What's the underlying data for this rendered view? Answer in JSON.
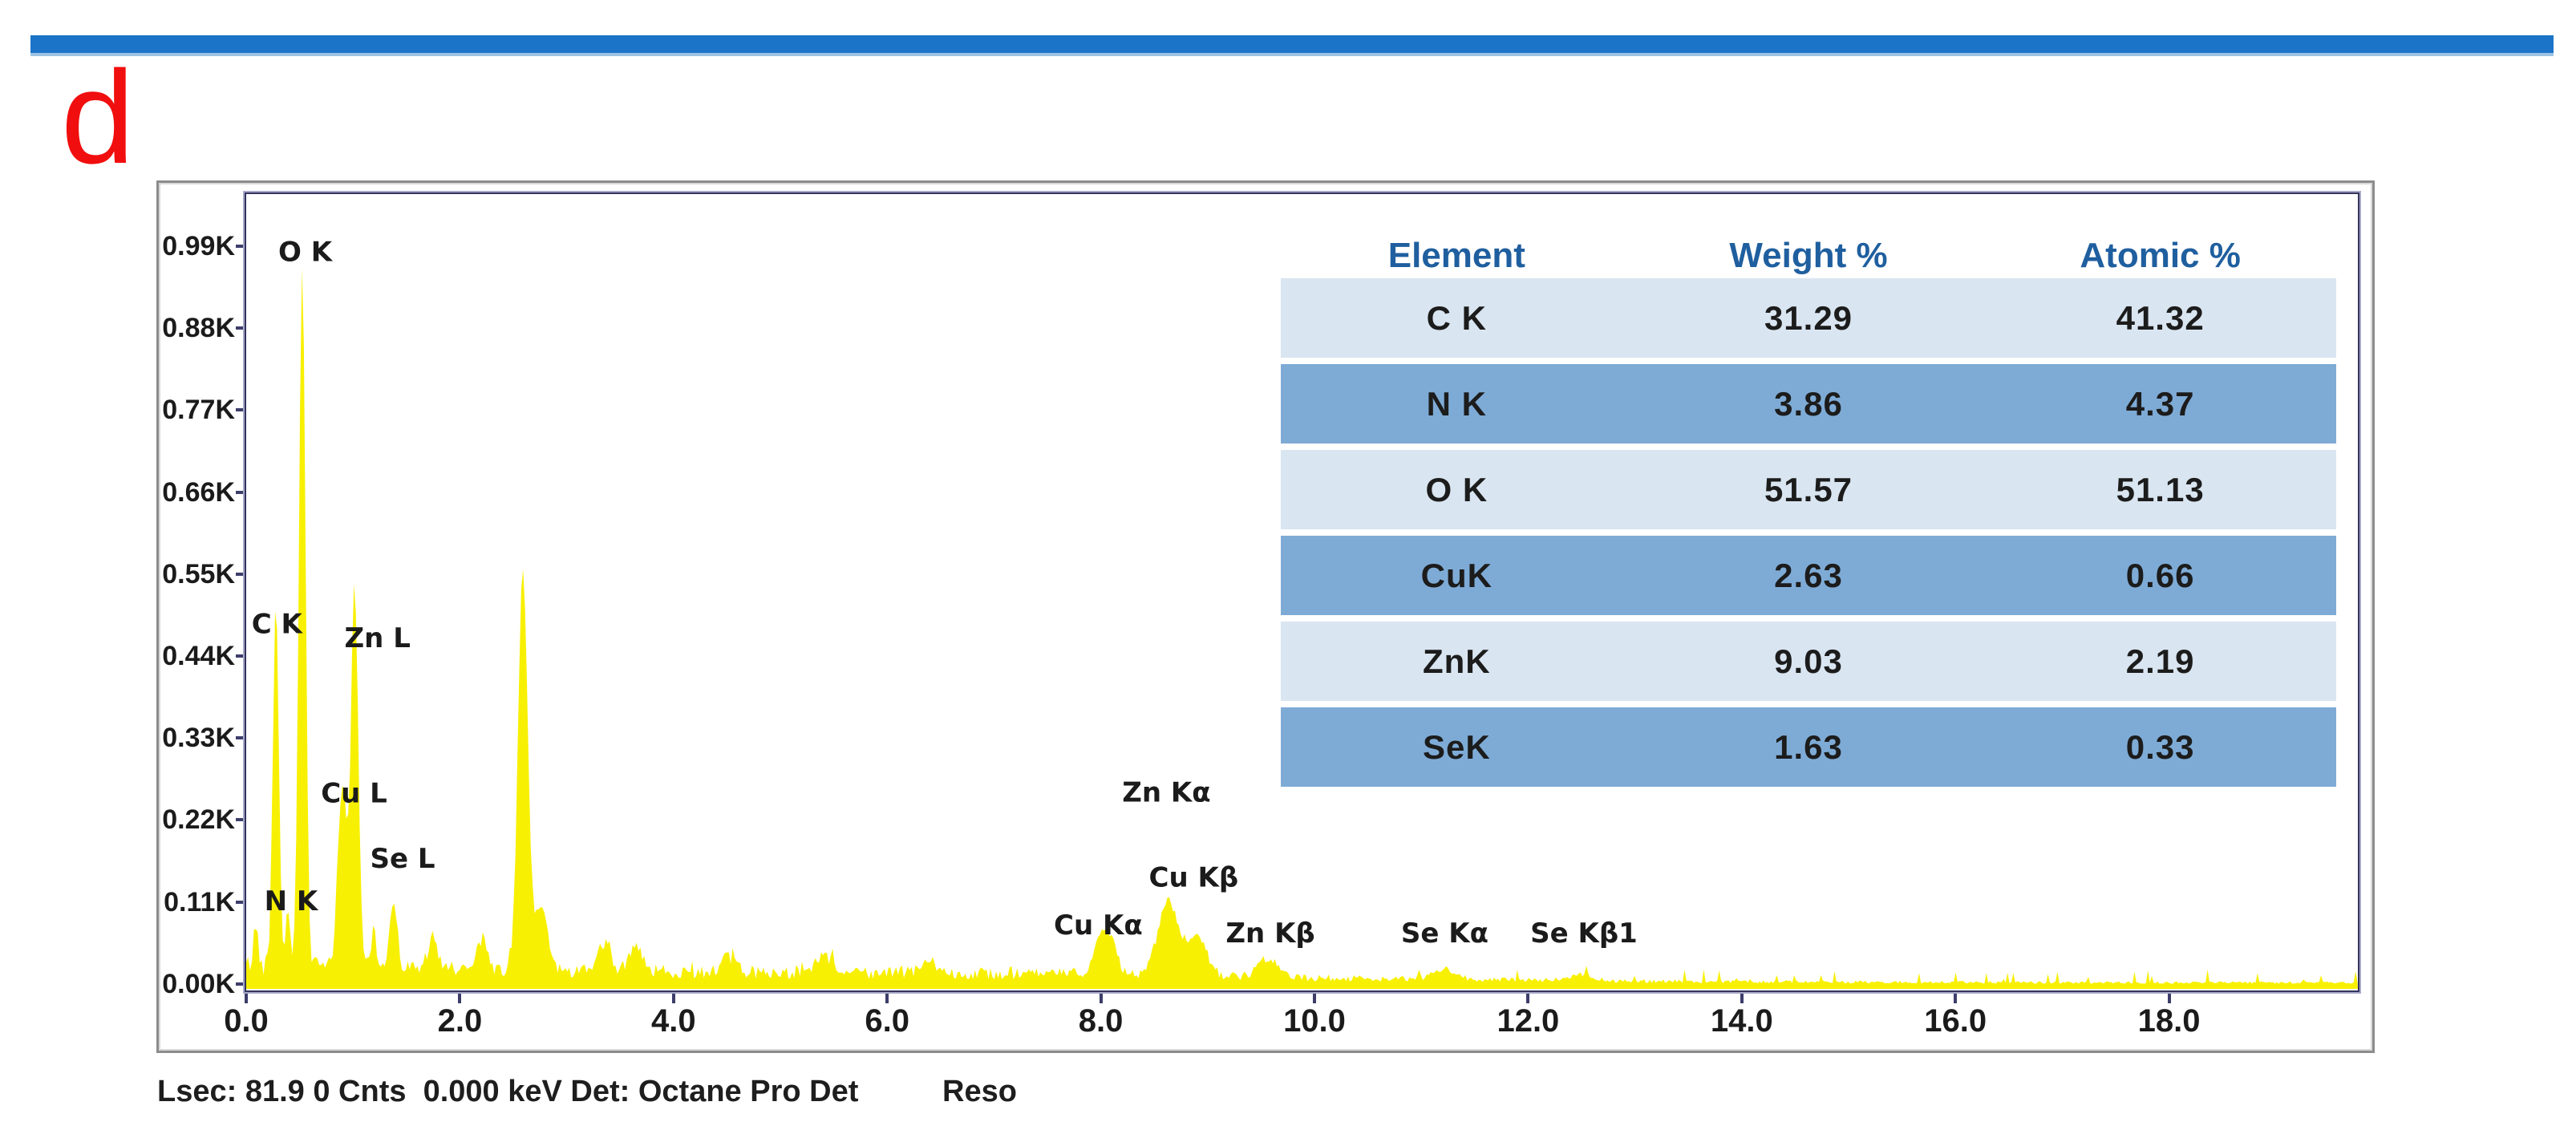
{
  "panel": {
    "label": "d"
  },
  "top_bar": {
    "color": "#1B74C8",
    "underline_color": "#9CC2E5"
  },
  "panel_label_color": "#F10E0E",
  "status_bar": {
    "text": "Lsec: 81.9 0 Cnts  0.000 keV Det: Octane Pro Det",
    "right_text": "Reso"
  },
  "table": {
    "headers": [
      "Element",
      "Weight %",
      "Atomic %"
    ],
    "header_text_color": "#1F5F9F",
    "row_color_light": "#D9E5F1",
    "row_color_dark": "#7EABD6",
    "rows": [
      {
        "element": "C K",
        "weight": "31.29",
        "atomic": "41.32",
        "shade": "light"
      },
      {
        "element": "N K",
        "weight": "3.86",
        "atomic": "4.37",
        "shade": "dark"
      },
      {
        "element": "O K",
        "weight": "51.57",
        "atomic": "51.13",
        "shade": "light"
      },
      {
        "element": "CuK",
        "weight": "2.63",
        "atomic": "0.66",
        "shade": "dark"
      },
      {
        "element": "ZnK",
        "weight": "9.03",
        "atomic": "2.19",
        "shade": "light"
      },
      {
        "element": "SeK",
        "weight": "1.63",
        "atomic": "0.33",
        "shade": "dark"
      }
    ]
  },
  "chart_data": {
    "type": "area",
    "title": "EDS spectrum",
    "series_color": "#F8F002",
    "x_range_keV": [
      0,
      19.77
    ],
    "y_range_counts": [
      0,
      1065
    ],
    "x_tick_step_keV": 2.0,
    "x_ticks": [
      "0.0",
      "2.0",
      "4.0",
      "6.0",
      "8.0",
      "10.0",
      "12.0",
      "14.0",
      "16.0",
      "18.0"
    ],
    "y_ticks": [
      "0.99K",
      "0.88K",
      "0.77K",
      "0.66K",
      "0.55K",
      "0.44K",
      "0.33K",
      "0.22K",
      "0.11K",
      "0.00K"
    ],
    "grid": "off",
    "legend": "none",
    "peaks": [
      {
        "line": "tail",
        "keV": 0.09,
        "counts": 55,
        "sigma": 0.02
      },
      {
        "line": "C K",
        "keV": 0.277,
        "counts": 480,
        "sigma": 0.028
      },
      {
        "line": "N K",
        "keV": 0.392,
        "counts": 72,
        "sigma": 0.024
      },
      {
        "line": "O K",
        "keV": 0.525,
        "counts": 945,
        "sigma": 0.03
      },
      {
        "line": "Cu L",
        "keV": 0.9,
        "counts": 250,
        "sigma": 0.042
      },
      {
        "line": "Zn L",
        "keV": 1.015,
        "counts": 510,
        "sigma": 0.033
      },
      {
        "line": "minor",
        "keV": 1.19,
        "counts": 45,
        "sigma": 0.03
      },
      {
        "line": "Se L",
        "keV": 1.38,
        "counts": 92,
        "sigma": 0.036
      },
      {
        "line": "minor",
        "keV": 1.74,
        "counts": 40,
        "sigma": 0.045
      },
      {
        "line": "minor",
        "keV": 2.2,
        "counts": 42,
        "sigma": 0.05
      },
      {
        "line": "unlabeled",
        "keV": 2.59,
        "counts": 535,
        "sigma": 0.045
      },
      {
        "line": "shoulder",
        "keV": 2.76,
        "counts": 88,
        "sigma": 0.06
      },
      {
        "line": "minor",
        "keV": 3.35,
        "counts": 35,
        "sigma": 0.06
      },
      {
        "line": "minor",
        "keV": 3.65,
        "counts": 38,
        "sigma": 0.06
      },
      {
        "line": "minor",
        "keV": 4.51,
        "counts": 18,
        "sigma": 0.07
      },
      {
        "line": "minor",
        "keV": 5.41,
        "counts": 20,
        "sigma": 0.08
      },
      {
        "line": "minor",
        "keV": 6.4,
        "counts": 14,
        "sigma": 0.08
      },
      {
        "line": "Cu Ka",
        "keV": 8.04,
        "counts": 62,
        "sigma": 0.085
      },
      {
        "line": "Zn Ka",
        "keV": 8.63,
        "counts": 98,
        "sigma": 0.095
      },
      {
        "line": "Cu Kb",
        "keV": 8.9,
        "counts": 52,
        "sigma": 0.09
      },
      {
        "line": "Zn Kb",
        "keV": 9.57,
        "counts": 24,
        "sigma": 0.09
      },
      {
        "line": "Se Ka",
        "keV": 11.22,
        "counts": 14,
        "sigma": 0.1
      },
      {
        "line": "Se Kb1",
        "keV": 12.49,
        "counts": 8,
        "sigma": 0.11
      }
    ],
    "baseline_counts": [
      [
        0,
        26
      ],
      [
        1,
        22
      ],
      [
        2,
        20
      ],
      [
        3,
        18
      ],
      [
        5,
        16
      ],
      [
        8,
        14
      ],
      [
        10,
        9
      ],
      [
        12,
        6
      ],
      [
        14,
        4
      ],
      [
        17,
        3
      ],
      [
        19.77,
        3
      ]
    ],
    "annotations": [
      {
        "text": "O K",
        "keV": 0.3,
        "counts": 971
      },
      {
        "text": "C K",
        "keV": 0.05,
        "counts": 472
      },
      {
        "text": "Zn L",
        "keV": 0.92,
        "counts": 453
      },
      {
        "text": "Cu L",
        "keV": 0.7,
        "counts": 245
      },
      {
        "text": "Se L",
        "keV": 1.16,
        "counts": 157
      },
      {
        "text": "N K",
        "keV": 0.17,
        "counts": 100
      },
      {
        "text": "Zn Kα",
        "keV": 8.2,
        "counts": 246
      },
      {
        "text": "Cu Kβ",
        "keV": 8.45,
        "counts": 132
      },
      {
        "text": "Cu Kα",
        "keV": 7.56,
        "counts": 68
      },
      {
        "text": "Zn Kβ",
        "keV": 9.17,
        "counts": 57
      },
      {
        "text": "Se Kα",
        "keV": 10.81,
        "counts": 57
      },
      {
        "text": "Se Kβ1",
        "keV": 12.02,
        "counts": 57
      }
    ]
  }
}
